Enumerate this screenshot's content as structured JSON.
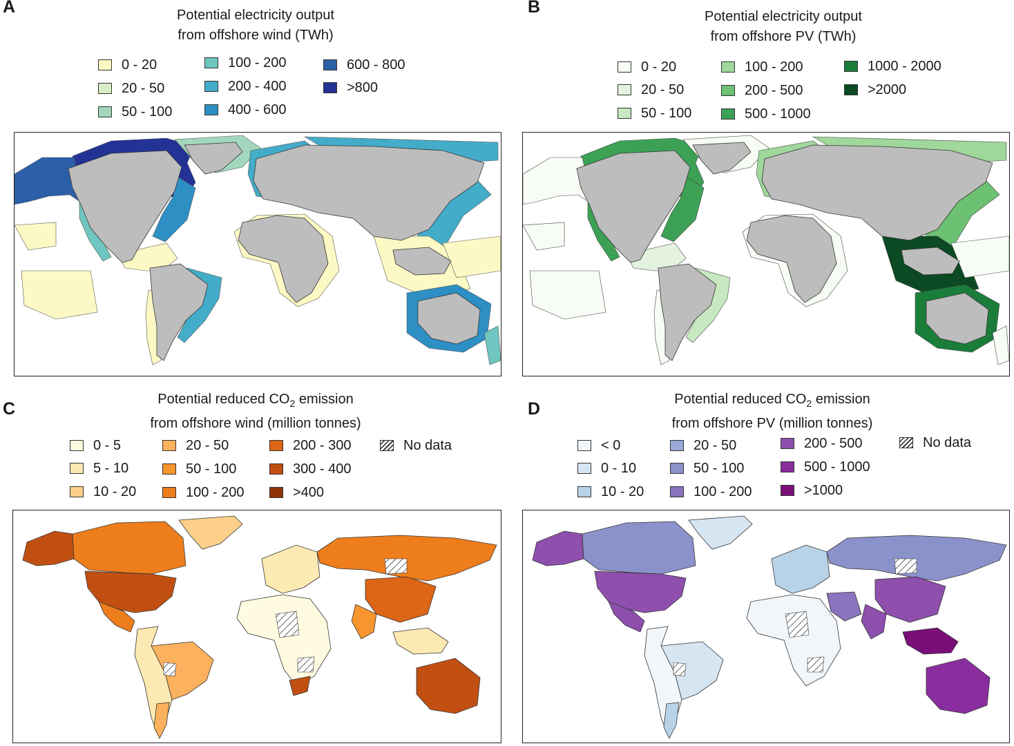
{
  "panels": {
    "a": {
      "letter": "A",
      "title_line1": "Potential electricity output",
      "title_line2": "from offshore wind (TWh)",
      "legend": [
        {
          "label": "0 - 20",
          "color": "#fdf9c4"
        },
        {
          "label": "20 - 50",
          "color": "#d8eec6"
        },
        {
          "label": "50 - 100",
          "color": "#a3d7bd"
        },
        {
          "label": "100 - 200",
          "color": "#6fc5bf"
        },
        {
          "label": "200 - 400",
          "color": "#43acc8"
        },
        {
          "label": "400 - 600",
          "color": "#2d8fc4"
        },
        {
          "label": "600 - 800",
          "color": "#2c5fa8"
        },
        {
          "label": ">800",
          "color": "#233295"
        }
      ]
    },
    "b": {
      "letter": "B",
      "title_line1": "Potential electricity output",
      "title_line2": "from offshore PV (TWh)",
      "legend": [
        {
          "label": "0 - 20",
          "color": "#f7fcf5"
        },
        {
          "label": "20 - 50",
          "color": "#e3f3df"
        },
        {
          "label": "50 - 100",
          "color": "#c7e8c0"
        },
        {
          "label": "100 - 200",
          "color": "#9fd89a"
        },
        {
          "label": "200 - 500",
          "color": "#6dc173"
        },
        {
          "label": "500 - 1000",
          "color": "#3ca155"
        },
        {
          "label": "1000 - 2000",
          "color": "#1b7d3a"
        },
        {
          "label": ">2000",
          "color": "#0b4a22"
        }
      ]
    },
    "c": {
      "letter": "C",
      "title_line1_a": "Potential reduced",
      "title_line1_b": "CO",
      "title_line1_sub": "2",
      "title_line1_c": "emission",
      "title_line2": "from offshore wind (million tonnes)",
      "legend": [
        {
          "label": "0 - 5",
          "color": "#fffbe0"
        },
        {
          "label": "5 - 10",
          "color": "#fde9b2"
        },
        {
          "label": "10 - 20",
          "color": "#fdd08a"
        },
        {
          "label": "20 - 50",
          "color": "#fbb15d"
        },
        {
          "label": "50 - 100",
          "color": "#f7952f"
        },
        {
          "label": "100 - 200",
          "color": "#ee7d1c"
        },
        {
          "label": "200 - 300",
          "color": "#dc6516"
        },
        {
          "label": "300 - 400",
          "color": "#c24f12"
        },
        {
          "label": ">400",
          "color": "#8e3308"
        }
      ],
      "no_data_label": "No data"
    },
    "d": {
      "letter": "D",
      "title_line1_a": "Potential reduced",
      "title_line1_b": "CO",
      "title_line1_sub": "2",
      "title_line1_c": "emission",
      "title_line2": "from offshore PV (million tonnes)",
      "legend": [
        {
          "label": "< 0",
          "color": "#f1f6fb"
        },
        {
          "label": "0 - 10",
          "color": "#d6e5f2"
        },
        {
          "label": "10 - 20",
          "color": "#b8d3e8"
        },
        {
          "label": "20 - 50",
          "color": "#9aa9d8"
        },
        {
          "label": "50 - 100",
          "color": "#8b92cb"
        },
        {
          "label": "100 - 200",
          "color": "#8a73bf"
        },
        {
          "label": "200 - 500",
          "color": "#8e4fad"
        },
        {
          "label": "500 - 1000",
          "color": "#8a2d9e"
        },
        {
          "label": ">1000",
          "color": "#7a0f7a"
        }
      ],
      "no_data_label": "No data"
    }
  },
  "colors": {
    "land_gray": "#bdbdbd",
    "border": "#333333"
  }
}
